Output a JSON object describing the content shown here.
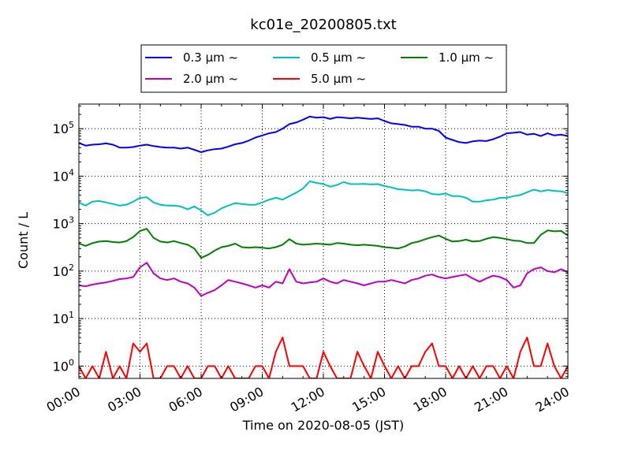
{
  "chart_data": {
    "type": "line",
    "title": "kc01e_20200805.txt",
    "xlabel": "Time on 2020-08-05 (JST)",
    "ylabel": "Count / L",
    "yscale": "log",
    "ylim": [
      0.55,
      330000
    ],
    "xlim": [
      "00:00",
      "24:00"
    ],
    "x_ticks": [
      "00:00",
      "03:00",
      "06:00",
      "09:00",
      "12:00",
      "15:00",
      "18:00",
      "21:00",
      "24:00"
    ],
    "y_ticks": [
      {
        "value": 1,
        "base": "10",
        "exp": "0"
      },
      {
        "value": 10,
        "base": "10",
        "exp": "1"
      },
      {
        "value": 100,
        "base": "10",
        "exp": "2"
      },
      {
        "value": 1000,
        "base": "10",
        "exp": "3"
      },
      {
        "value": 10000,
        "base": "10",
        "exp": "4"
      },
      {
        "value": 100000,
        "base": "10",
        "exp": "5"
      }
    ],
    "grid": true,
    "legend_position": "top-center",
    "series": [
      {
        "name": "0.3 μm ~",
        "color": "#0000ff",
        "x": [
          "00:00",
          "00:20",
          "00:40",
          "01:00",
          "01:20",
          "01:40",
          "02:00",
          "02:20",
          "02:40",
          "03:00",
          "03:20",
          "03:40",
          "04:00",
          "04:20",
          "04:40",
          "05:00",
          "05:20",
          "05:40",
          "06:00",
          "06:20",
          "06:40",
          "07:00",
          "07:20",
          "07:40",
          "08:00",
          "08:20",
          "08:40",
          "09:00",
          "09:20",
          "09:40",
          "10:00",
          "10:20",
          "10:40",
          "11:00",
          "11:20",
          "11:40",
          "12:00",
          "12:20",
          "12:40",
          "13:00",
          "13:20",
          "13:40",
          "14:00",
          "14:20",
          "14:40",
          "15:00",
          "15:20",
          "15:40",
          "16:00",
          "16:20",
          "16:40",
          "17:00",
          "17:20",
          "17:40",
          "18:00",
          "18:20",
          "18:40",
          "19:00",
          "19:20",
          "19:40",
          "20:00",
          "20:20",
          "20:40",
          "21:00",
          "21:20",
          "21:40",
          "22:00",
          "22:20",
          "22:40",
          "23:00",
          "23:20",
          "23:40",
          "24:00"
        ],
        "y": [
          50000,
          44000,
          46000,
          47000,
          49000,
          46000,
          40000,
          40000,
          41000,
          44000,
          46000,
          43000,
          41000,
          40000,
          40000,
          38000,
          40000,
          36000,
          32000,
          35000,
          37000,
          38000,
          42000,
          47000,
          50000,
          56000,
          65000,
          72000,
          80000,
          85000,
          100000,
          125000,
          135000,
          155000,
          180000,
          170000,
          175000,
          160000,
          175000,
          170000,
          165000,
          170000,
          165000,
          160000,
          165000,
          145000,
          130000,
          125000,
          120000,
          110000,
          110000,
          100000,
          100000,
          90000,
          65000,
          58000,
          52000,
          50000,
          54000,
          56000,
          55000,
          60000,
          68000,
          80000,
          82000,
          85000,
          75000,
          78000,
          70000,
          80000,
          72000,
          75000,
          70000
        ]
      },
      {
        "name": "0.5 μm ~",
        "color": "#00bfbf",
        "x": [
          "00:00",
          "00:20",
          "00:40",
          "01:00",
          "01:20",
          "01:40",
          "02:00",
          "02:20",
          "02:40",
          "03:00",
          "03:20",
          "03:40",
          "04:00",
          "04:20",
          "04:40",
          "05:00",
          "05:20",
          "05:40",
          "06:00",
          "06:20",
          "06:40",
          "07:00",
          "07:20",
          "07:40",
          "08:00",
          "08:20",
          "08:40",
          "09:00",
          "09:20",
          "09:40",
          "10:00",
          "10:20",
          "10:40",
          "11:00",
          "11:20",
          "11:40",
          "12:00",
          "12:20",
          "12:40",
          "13:00",
          "13:20",
          "13:40",
          "14:00",
          "14:20",
          "14:40",
          "15:00",
          "15:20",
          "15:40",
          "16:00",
          "16:20",
          "16:40",
          "17:00",
          "17:20",
          "17:40",
          "18:00",
          "18:20",
          "18:40",
          "19:00",
          "19:20",
          "19:40",
          "20:00",
          "20:20",
          "20:40",
          "21:00",
          "21:20",
          "21:40",
          "22:00",
          "22:20",
          "22:40",
          "23:00",
          "23:20",
          "23:40",
          "24:00"
        ],
        "y": [
          2800,
          2400,
          2900,
          3000,
          2800,
          2600,
          2400,
          2500,
          2900,
          3500,
          3600,
          2800,
          2500,
          2400,
          2400,
          2300,
          2000,
          2300,
          1900,
          1500,
          1700,
          2100,
          2400,
          2700,
          2600,
          2500,
          2500,
          2800,
          3200,
          3500,
          3200,
          3800,
          4500,
          5500,
          7800,
          7200,
          6800,
          6000,
          6500,
          7500,
          6800,
          6800,
          6900,
          6700,
          6800,
          6200,
          5800,
          5300,
          5200,
          5000,
          5100,
          4800,
          4200,
          4100,
          4300,
          3800,
          3800,
          3500,
          2900,
          2900,
          3100,
          3200,
          3500,
          3500,
          3800,
          4000,
          4600,
          5200,
          4800,
          5100,
          4900,
          4800,
          4400
        ]
      },
      {
        "name": "1.0 μm ~",
        "color": "#008000",
        "x": [
          "00:00",
          "00:20",
          "00:40",
          "01:00",
          "01:20",
          "01:40",
          "02:00",
          "02:20",
          "02:40",
          "03:00",
          "03:20",
          "03:40",
          "04:00",
          "04:20",
          "04:40",
          "05:00",
          "05:20",
          "05:40",
          "06:00",
          "06:20",
          "06:40",
          "07:00",
          "07:20",
          "07:40",
          "08:00",
          "08:20",
          "08:40",
          "09:00",
          "09:20",
          "09:40",
          "10:00",
          "10:20",
          "10:40",
          "11:00",
          "11:20",
          "11:40",
          "12:00",
          "12:20",
          "12:40",
          "13:00",
          "13:20",
          "13:40",
          "14:00",
          "14:20",
          "14:40",
          "15:00",
          "15:20",
          "15:40",
          "16:00",
          "16:20",
          "16:40",
          "17:00",
          "17:20",
          "17:40",
          "18:00",
          "18:20",
          "18:40",
          "19:00",
          "19:20",
          "19:40",
          "20:00",
          "20:20",
          "20:40",
          "21:00",
          "21:20",
          "21:40",
          "22:00",
          "22:20",
          "22:40",
          "23:00",
          "23:20",
          "23:40",
          "24:00"
        ],
        "y": [
          380,
          340,
          390,
          420,
          430,
          410,
          400,
          430,
          520,
          700,
          780,
          500,
          420,
          400,
          430,
          390,
          360,
          300,
          190,
          220,
          270,
          320,
          340,
          380,
          320,
          310,
          320,
          310,
          300,
          320,
          360,
          470,
          380,
          360,
          370,
          380,
          370,
          360,
          390,
          380,
          360,
          350,
          360,
          350,
          340,
          320,
          310,
          300,
          330,
          390,
          420,
          470,
          520,
          560,
          480,
          420,
          430,
          460,
          420,
          430,
          480,
          520,
          500,
          470,
          440,
          430,
          390,
          390,
          580,
          720,
          690,
          700,
          560
        ]
      },
      {
        "name": "2.0 μm ~",
        "color": "#bf00bf",
        "x": [
          "00:00",
          "00:20",
          "00:40",
          "01:00",
          "01:20",
          "01:40",
          "02:00",
          "02:20",
          "02:40",
          "03:00",
          "03:20",
          "03:40",
          "04:00",
          "04:20",
          "04:40",
          "05:00",
          "05:20",
          "05:40",
          "06:00",
          "06:20",
          "06:40",
          "07:00",
          "07:20",
          "07:40",
          "08:00",
          "08:20",
          "08:40",
          "09:00",
          "09:20",
          "09:40",
          "10:00",
          "10:20",
          "10:40",
          "11:00",
          "11:20",
          "11:40",
          "12:00",
          "12:20",
          "12:40",
          "13:00",
          "13:20",
          "13:40",
          "14:00",
          "14:20",
          "14:40",
          "15:00",
          "15:20",
          "15:40",
          "16:00",
          "16:20",
          "16:40",
          "17:00",
          "17:20",
          "17:40",
          "18:00",
          "18:20",
          "18:40",
          "19:00",
          "19:20",
          "19:40",
          "20:00",
          "20:20",
          "20:40",
          "21:00",
          "21:20",
          "21:40",
          "22:00",
          "22:20",
          "22:40",
          "23:00",
          "23:20",
          "23:40",
          "24:00"
        ],
        "y": [
          50,
          48,
          52,
          55,
          58,
          62,
          68,
          70,
          75,
          120,
          150,
          90,
          70,
          65,
          70,
          60,
          55,
          45,
          30,
          35,
          40,
          50,
          65,
          60,
          55,
          50,
          45,
          50,
          45,
          60,
          55,
          110,
          60,
          55,
          58,
          60,
          70,
          60,
          55,
          65,
          60,
          55,
          50,
          55,
          60,
          60,
          65,
          60,
          55,
          65,
          70,
          80,
          85,
          75,
          70,
          75,
          80,
          85,
          70,
          60,
          70,
          80,
          75,
          65,
          45,
          50,
          90,
          110,
          120,
          100,
          95,
          110,
          95
        ]
      },
      {
        "name": "5.0 μm ~",
        "color": "#ff0000",
        "x": [
          "00:00",
          "00:20",
          "00:40",
          "01:00",
          "01:20",
          "01:40",
          "02:00",
          "02:20",
          "02:40",
          "03:00",
          "03:20",
          "03:40",
          "04:00",
          "04:20",
          "04:40",
          "05:00",
          "05:20",
          "05:40",
          "06:00",
          "06:20",
          "06:40",
          "07:00",
          "07:20",
          "07:40",
          "08:00",
          "08:20",
          "08:40",
          "09:00",
          "09:20",
          "09:40",
          "10:00",
          "10:20",
          "10:40",
          "11:00",
          "11:20",
          "11:40",
          "12:00",
          "12:20",
          "12:40",
          "13:00",
          "13:20",
          "13:40",
          "14:00",
          "14:20",
          "14:40",
          "15:00",
          "15:20",
          "15:40",
          "16:00",
          "16:20",
          "16:40",
          "17:00",
          "17:20",
          "17:40",
          "18:00",
          "18:20",
          "18:40",
          "19:00",
          "19:20",
          "19:40",
          "20:00",
          "20:20",
          "20:40",
          "21:00",
          "21:20",
          "21:40",
          "22:00",
          "22:20",
          "22:40",
          "23:00",
          "23:20",
          "23:40",
          "24:00"
        ],
        "y": [
          1,
          0,
          1,
          0,
          2,
          0,
          1,
          0,
          3,
          2,
          3,
          0,
          0,
          1,
          1,
          0,
          1,
          0,
          0,
          1,
          1,
          0,
          1,
          0,
          0,
          0,
          1,
          1,
          0,
          2,
          4,
          1,
          1,
          1,
          0,
          0,
          2,
          1,
          0,
          0,
          0,
          2,
          1,
          0,
          2,
          1,
          0,
          1,
          0,
          1,
          1,
          2,
          3,
          1,
          1,
          0,
          1,
          0,
          1,
          0,
          1,
          1,
          0,
          1,
          0,
          2,
          4,
          1,
          1,
          3,
          1,
          0,
          1
        ]
      }
    ]
  }
}
